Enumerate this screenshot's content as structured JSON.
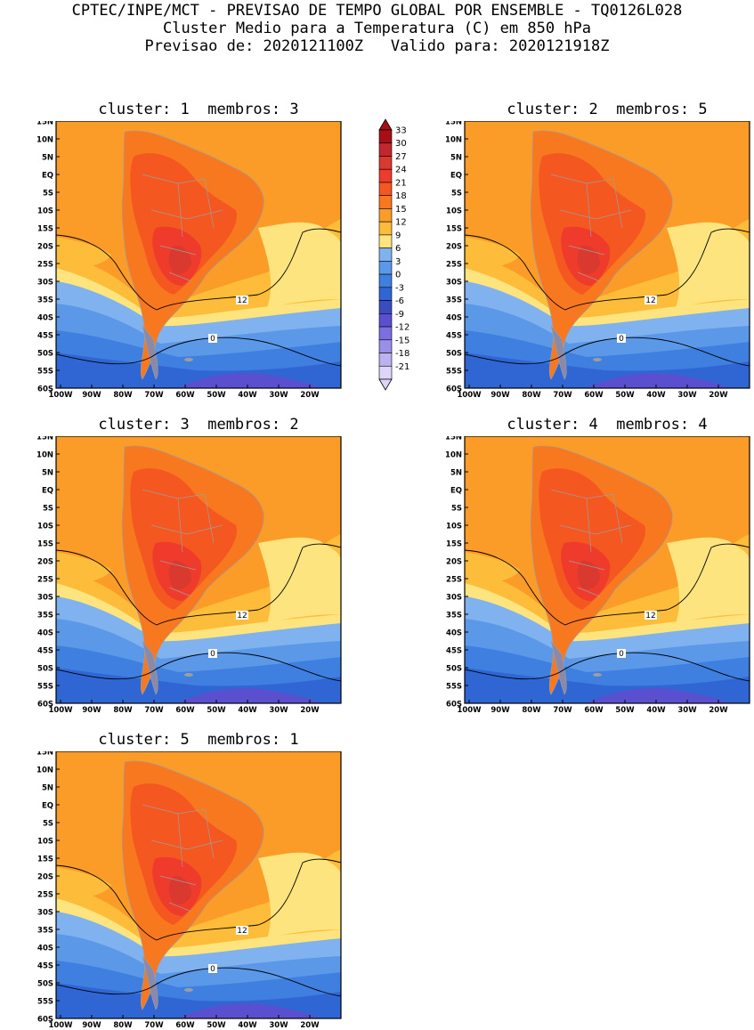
{
  "header": {
    "line1": "CPTEC/INPE/MCT - PREVISAO DE TEMPO GLOBAL POR ENSEMBLE - TQ0126L028",
    "line2": "Cluster Medio para a Temperatura (C) em 850 hPa",
    "line3": "Previsao de: 2020121100Z   Valido para: 2020121918Z"
  },
  "map": {
    "lat_labels": [
      "15N",
      "10N",
      "5N",
      "EQ",
      "5S",
      "10S",
      "15S",
      "20S",
      "25S",
      "30S",
      "35S",
      "40S",
      "45S",
      "50S",
      "55S",
      "60S"
    ],
    "lon_labels": [
      "100W",
      "90W",
      "80W",
      "70W",
      "60W",
      "50W",
      "40W",
      "30W",
      "20W"
    ],
    "contour_label_12": "12",
    "contour_label_0": "0"
  },
  "panels": [
    {
      "title": "cluster: 1  membros: 3"
    },
    {
      "title": "cluster: 2  membros: 5"
    },
    {
      "title": "cluster: 3  membros: 2"
    },
    {
      "title": "cluster: 4  membros: 4"
    },
    {
      "title": "cluster: 5  membros: 1"
    }
  ],
  "colorbar": {
    "labels": [
      "33",
      "30",
      "27",
      "24",
      "21",
      "18",
      "15",
      "12",
      "9",
      "6",
      "3",
      "0",
      "-3",
      "-6",
      "-9",
      "-12",
      "-15",
      "-18",
      "-21"
    ],
    "colors": [
      "#a50f15",
      "#c2272d",
      "#d9392e",
      "#ef3b2c",
      "#f4571f",
      "#f87820",
      "#fb9c28",
      "#fdbd3b",
      "#fde47f",
      "#7fb2ee",
      "#5b98e8",
      "#3f7fe0",
      "#2f66d4",
      "#3b4cc0",
      "#5a4fcf",
      "#7b6ee0",
      "#9a8fe8",
      "#bdb2f0",
      "#ddd6f8"
    ]
  }
}
